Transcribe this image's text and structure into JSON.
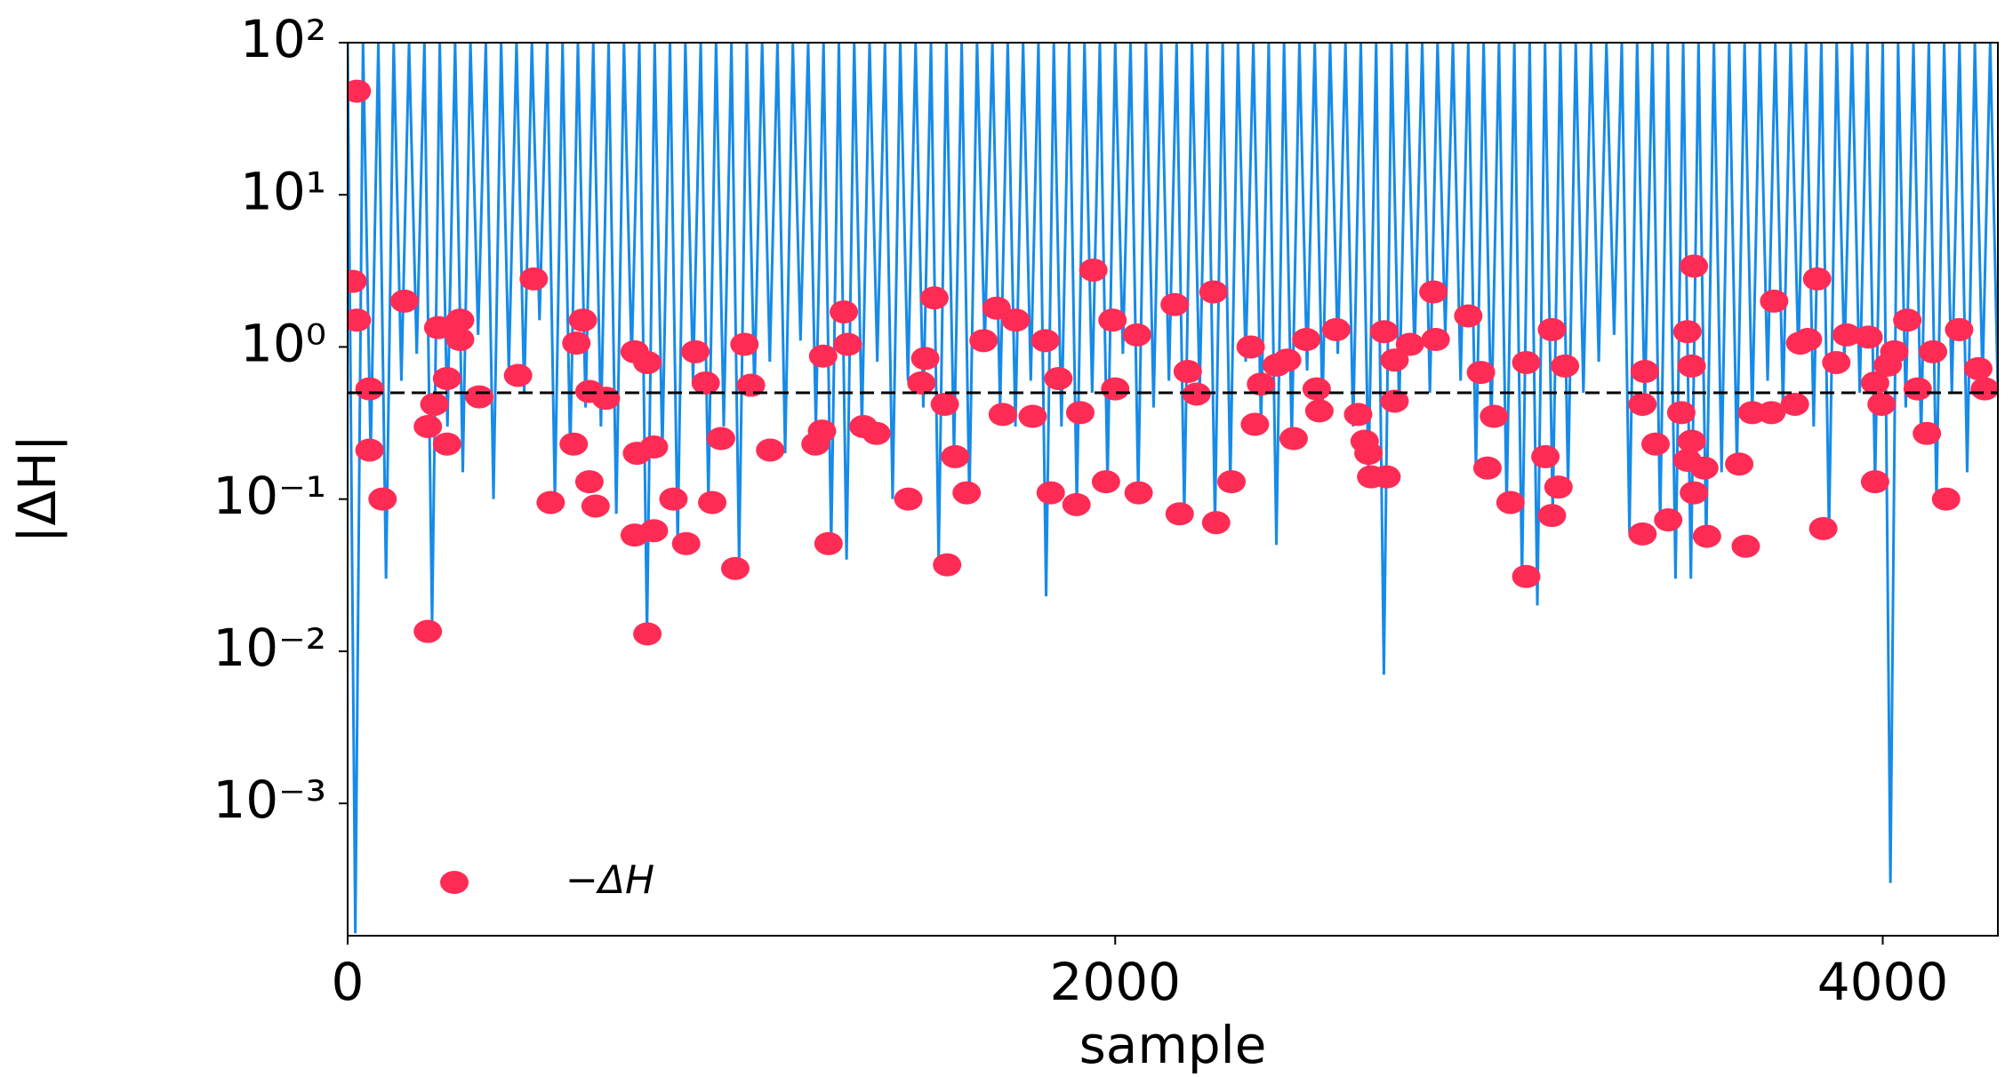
{
  "chart_data": {
    "type": "line-scatter",
    "xlabel": "sample",
    "ylabel": "|ΔH|",
    "xlim": [
      0,
      4300
    ],
    "ylim": [
      0.000135,
      100
    ],
    "log_y": true,
    "xticks": [
      0,
      2000,
      4000
    ],
    "yticks": [
      {
        "value": 0.001,
        "label": "10⁻³"
      },
      {
        "value": 0.01,
        "label": "10⁻²"
      },
      {
        "value": 0.1,
        "label": "10⁻¹"
      },
      {
        "value": 1,
        "label": "10⁰"
      },
      {
        "value": 10,
        "label": "10¹"
      },
      {
        "value": 100,
        "label": "10²"
      }
    ],
    "legend": "lower left",
    "hlines": [
      {
        "value": 0.5,
        "color": "#000000",
        "style": "dashed"
      }
    ],
    "series": [
      {
        "type": "line",
        "color": "#168be8",
        "x": [
          0,
          20,
          40,
          60,
          80,
          100,
          120,
          140,
          160,
          180,
          200,
          220,
          240,
          260,
          280,
          300,
          320,
          340,
          360,
          380,
          400,
          420,
          440,
          460,
          480,
          500,
          520,
          540,
          560,
          580,
          600,
          620,
          640,
          660,
          680,
          700,
          720,
          740,
          760,
          780,
          800,
          820,
          840,
          860,
          880,
          900,
          920,
          940,
          960,
          980,
          1000,
          1020,
          1040,
          1060,
          1080,
          1100,
          1120,
          1140,
          1160,
          1180,
          1200,
          1220,
          1240,
          1260,
          1280,
          1300,
          1320,
          1340,
          1360,
          1380,
          1400,
          1420,
          1440,
          1460,
          1480,
          1500,
          1520,
          1540,
          1560,
          1580,
          1600,
          1620,
          1640,
          1660,
          1680,
          1700,
          1720,
          1740,
          1760,
          1780,
          1800,
          1820,
          1840,
          1860,
          1880,
          1900,
          1920,
          1940,
          1960,
          1980,
          2000,
          2020,
          2040,
          2060,
          2080,
          2100,
          2120,
          2140,
          2160,
          2180,
          2200,
          2220,
          2240,
          2260,
          2280,
          2300,
          2320,
          2340,
          2360,
          2380,
          2400,
          2420,
          2440,
          2460,
          2480,
          2500,
          2520,
          2540,
          2560,
          2580,
          2600,
          2620,
          2640,
          2660,
          2680,
          2700,
          2720,
          2740,
          2760,
          2780,
          2800,
          2820,
          2840,
          2860,
          2880,
          2900,
          2920,
          2940,
          2960,
          2980,
          3000,
          3020,
          3040,
          3060,
          3080,
          3100,
          3120,
          3140,
          3160,
          3180,
          3200,
          3220,
          3240,
          3260,
          3280,
          3300,
          3320,
          3340,
          3360,
          3380,
          3400,
          3420,
          3440,
          3460,
          3480,
          3500,
          3520,
          3540,
          3560,
          3580,
          3600,
          3620,
          3640,
          3660,
          3680,
          3700,
          3720,
          3740,
          3760,
          3780,
          3800,
          3820,
          3840,
          3860,
          3880,
          3900,
          3920,
          3940,
          3960,
          3980,
          4000,
          4020,
          4040,
          4060,
          4080,
          4100,
          4120,
          4140,
          4160,
          4180,
          4200,
          4220,
          4240,
          4260,
          4280,
          4300
        ],
        "values": [
          100,
          0.00014,
          100,
          0.2,
          100,
          0.03,
          100,
          0.6,
          100,
          0.9,
          100,
          0.015,
          100,
          0.3,
          100,
          0.15,
          100,
          1.2,
          100,
          0.1,
          100,
          0.7,
          100,
          0.5,
          100,
          1.5,
          100,
          0.1,
          100,
          0.2,
          100,
          0.4,
          100,
          0.3,
          100,
          0.08,
          100,
          0.8,
          100,
          0.013,
          100,
          0.2,
          100,
          0.05,
          100,
          0.6,
          100,
          0.1,
          100,
          0.3,
          100,
          0.04,
          100,
          0.5,
          100,
          0.8,
          100,
          0.2,
          100,
          1.1,
          100,
          0.3,
          100,
          0.05,
          100,
          0.04,
          100,
          0.3,
          100,
          0.8,
          100,
          0.1,
          100,
          0.6,
          100,
          0.4,
          100,
          0.04,
          100,
          0.2,
          100,
          0.1,
          100,
          1.0,
          100,
          0.4,
          100,
          0.3,
          100,
          0.6,
          100,
          0.023,
          100,
          0.3,
          100,
          0.09,
          100,
          0.5,
          100,
          0.13,
          100,
          0.9,
          100,
          0.11,
          100,
          0.4,
          100,
          0.6,
          100,
          0.08,
          100,
          0.5,
          100,
          0.07,
          100,
          0.13,
          100,
          0.8,
          100,
          0.3,
          100,
          0.05,
          100,
          0.25,
          100,
          0.7,
          100,
          0.4,
          100,
          0.9,
          100,
          0.3,
          100,
          0.14,
          100,
          0.007,
          100,
          0.4,
          100,
          0.9,
          100,
          0.5,
          100,
          1.2,
          100,
          0.6,
          100,
          0.16,
          100,
          0.3,
          100,
          0.09,
          100,
          0.03,
          100,
          0.02,
          100,
          0.08,
          100,
          0.12,
          100,
          0.5,
          100,
          0.8,
          100,
          1.2,
          100,
          0.06,
          100,
          0.4,
          100,
          0.07,
          100,
          0.03,
          100,
          0.03,
          100,
          0.05,
          100,
          0.15,
          100,
          0.17,
          100,
          0.35,
          100,
          0.6,
          100,
          0.4,
          100,
          0.9,
          100,
          0.3,
          100,
          0.06,
          100,
          0.8,
          100,
          0.5,
          100,
          0.13,
          100,
          0.0003,
          100,
          0.4,
          100,
          0.25,
          100,
          0.1,
          100,
          0.5,
          100,
          0.15,
          100,
          0.6,
          100,
          0.5
        ]
      },
      {
        "type": "scatter",
        "name": "−ΔH",
        "color": "#fe2c55",
        "x": [
          24,
          13,
          24,
          57,
          57,
          91,
          148,
          209,
          209,
          226,
          236,
          259,
          259,
          293,
          293,
          343,
          444,
          485,
          529,
          613,
          596,
          630,
          589,
          630,
          646,
          673,
          748,
          781,
          754,
          798,
          748,
          798,
          781,
          849,
          882,
          906,
          933,
          950,
          973,
          1010,
          1034,
          1051,
          1101,
          1219,
          1236,
          1253,
          1239,
          1303,
          1293,
          1344,
          1378,
          1461,
          1495,
          1505,
          1529,
          1556,
          1562,
          1583,
          1613,
          1657,
          1691,
          1707,
          1741,
          1785,
          1818,
          1832,
          1852,
          1899,
          1909,
          1943,
          1993,
          2000,
          1976,
          2057,
          2061,
          2155,
          2168,
          2189,
          2212,
          2256,
          2263,
          2303,
          2353,
          2364,
          2380,
          2421,
          2448,
          2465,
          2498,
          2525,
          2532,
          2576,
          2633,
          2650,
          2660,
          2667,
          2707,
          2701,
          2728,
          2728,
          2768,
          2829,
          2835,
          2920,
          2953,
          2970,
          2987,
          3030,
          3071,
          3071,
          3121,
          3138,
          3155,
          3172,
          3138,
          3374,
          3380,
          3374,
          3408,
          3441,
          3475,
          3491,
          3502,
          3508,
          3502,
          3491,
          3508,
          3535,
          3542,
          3626,
          3643,
          3660,
          3710,
          3717,
          3771,
          3785,
          3805,
          3829,
          3845,
          3879,
          3906,
          3963,
          3980,
          3997,
          3980,
          4013,
          4030,
          4064,
          4091,
          4115,
          4131,
          4165,
          4199,
          4249,
          4266
        ],
        "values": [
          48,
          2.7,
          1.5,
          0.53,
          0.21,
          0.1,
          2.0,
          0.0135,
          0.3,
          0.42,
          1.34,
          0.62,
          0.23,
          1.5,
          1.12,
          0.47,
          0.65,
          2.8,
          0.095,
          1.5,
          1.06,
          0.51,
          0.23,
          0.13,
          0.09,
          0.46,
          0.93,
          0.79,
          0.2,
          0.22,
          0.058,
          0.062,
          0.013,
          0.1,
          0.051,
          0.93,
          0.58,
          0.095,
          0.25,
          0.035,
          1.04,
          0.56,
          0.21,
          0.23,
          0.28,
          0.051,
          0.87,
          1.04,
          1.7,
          0.3,
          0.27,
          0.1,
          0.58,
          0.84,
          2.1,
          0.42,
          0.037,
          0.19,
          0.11,
          1.1,
          1.8,
          0.36,
          1.5,
          0.35,
          1.1,
          0.11,
          0.62,
          0.092,
          0.37,
          3.2,
          1.5,
          0.53,
          0.13,
          1.2,
          0.11,
          1.9,
          0.08,
          0.69,
          0.49,
          2.3,
          0.07,
          0.13,
          1.0,
          0.31,
          0.57,
          0.76,
          0.82,
          0.25,
          1.12,
          0.53,
          0.38,
          1.3,
          0.36,
          0.24,
          0.2,
          0.14,
          0.14,
          1.26,
          0.82,
          0.44,
          1.04,
          2.3,
          1.12,
          1.6,
          0.68,
          0.16,
          0.35,
          0.095,
          0.031,
          0.79,
          0.19,
          1.3,
          0.12,
          0.75,
          0.078,
          0.059,
          0.69,
          0.42,
          0.23,
          0.073,
          0.37,
          1.26,
          0.75,
          3.4,
          0.24,
          0.18,
          0.11,
          0.16,
          0.057,
          0.17,
          0.049,
          0.37,
          0.37,
          2.0,
          0.42,
          1.06,
          1.12,
          2.8,
          0.064,
          0.79,
          1.2,
          1.16,
          0.58,
          0.42,
          0.13,
          0.76,
          0.93,
          1.5,
          0.53,
          0.27,
          0.93,
          0.1,
          1.3,
          0.72,
          0.53
        ]
      }
    ]
  }
}
